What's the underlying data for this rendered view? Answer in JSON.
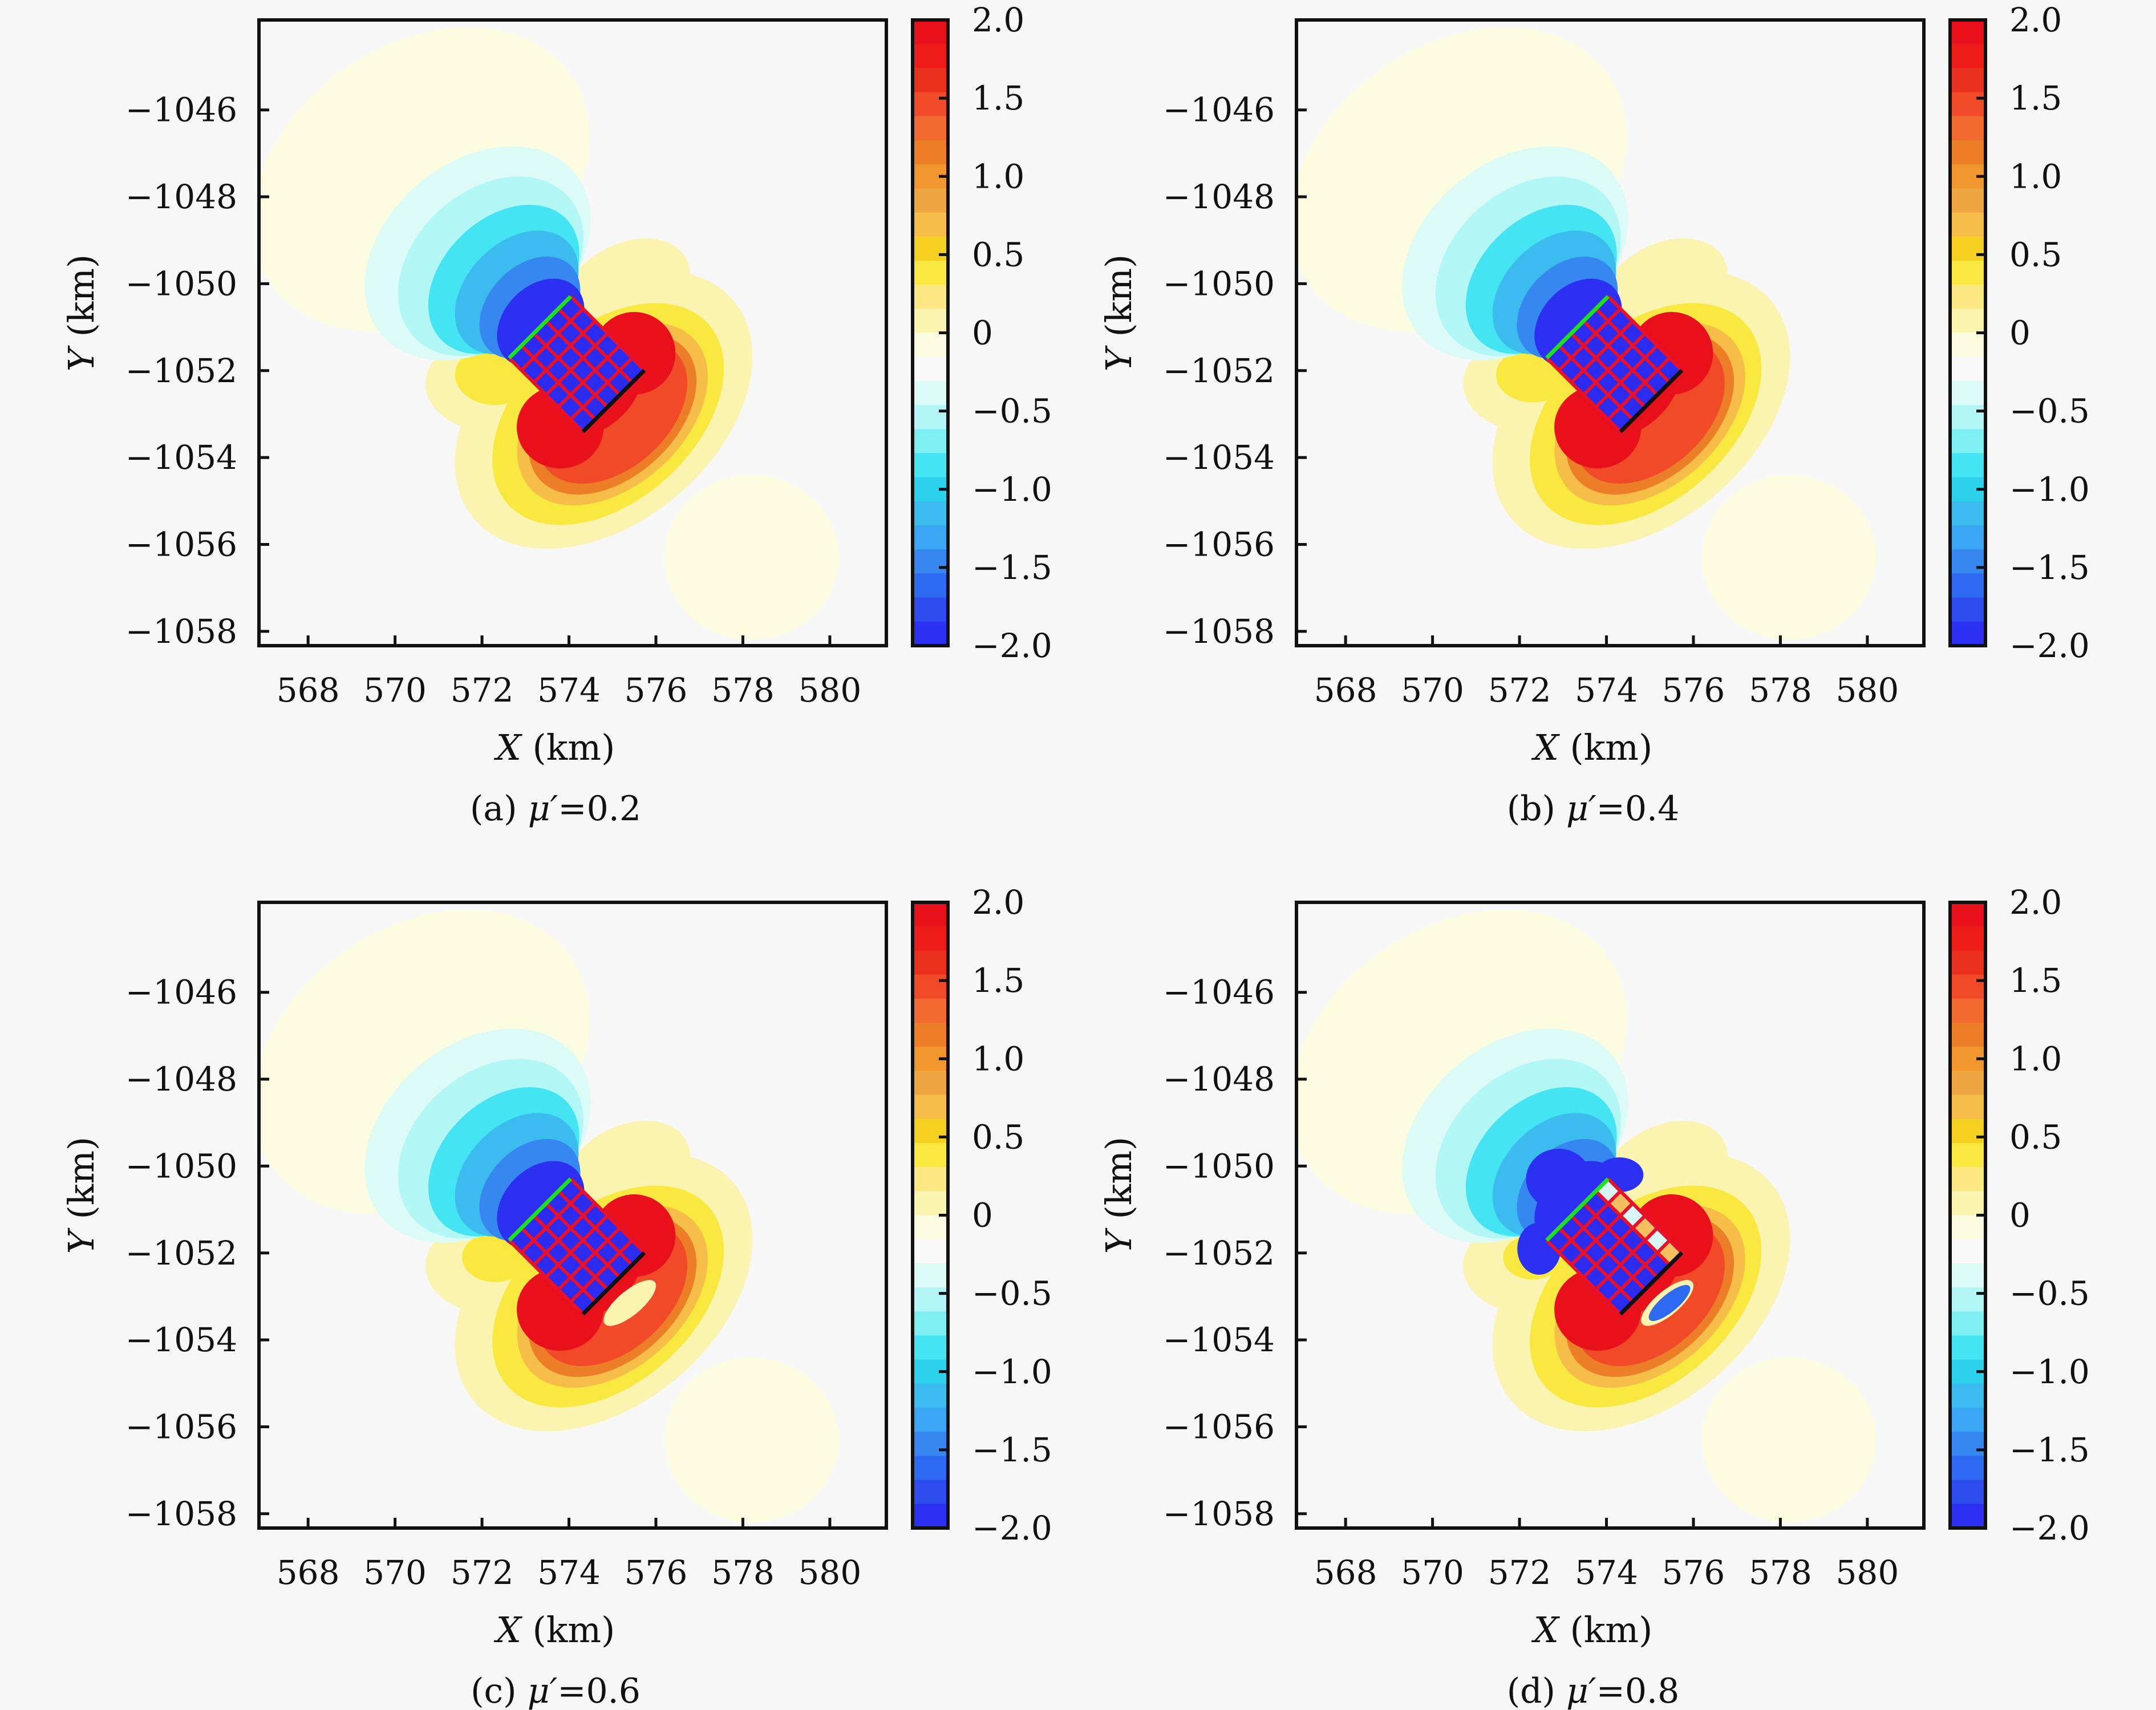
{
  "figure": {
    "background": "#f7f7f7"
  },
  "chart_data": {
    "type": "heatmap",
    "shared": {
      "xlabel_var": "X",
      "xlabel_unit": " (km)",
      "ylabel_var": "Y",
      "ylabel_unit": " (km)",
      "xlim": [
        566.87,
        581.3
      ],
      "ylim": [
        -1058.33,
        -1043.93
      ],
      "xticks": [
        568,
        570,
        572,
        574,
        576,
        578,
        580
      ],
      "xtick_labels": [
        "568",
        "570",
        "572",
        "574",
        "576",
        "578",
        "580"
      ],
      "yticks": [
        -1046,
        -1048,
        -1050,
        -1052,
        -1054,
        -1056,
        -1058
      ],
      "ytick_labels": [
        "−1046",
        "−1048",
        "−1050",
        "−1052",
        "−1054",
        "−1056",
        "−1058"
      ],
      "colorbar": {
        "range": [
          -2.0,
          2.0
        ],
        "ticks": [
          2.0,
          1.5,
          1.0,
          0.5,
          0,
          -0.5,
          -1.0,
          -1.5,
          -2.0
        ],
        "tick_labels": [
          "2.0",
          "1.5",
          "1.0",
          "0.5",
          "0",
          "−0.5",
          "−1.0",
          "−1.5",
          "−2.0"
        ],
        "colors_top_to_bottom": [
          "#e8101a",
          "#ee1c18",
          "#e8301c",
          "#f04a28",
          "#f26a30",
          "#ec7e28",
          "#f0962c",
          "#efa640",
          "#f6be48",
          "#f4d020",
          "#f8e840",
          "#fbe882",
          "#fbf4b0",
          "#fbfbe0",
          "#f8f8f8",
          "#dcfbf6",
          "#b2f7f6",
          "#7ef0f2",
          "#44e4f2",
          "#2cd2ec",
          "#3cbcee",
          "#3aa6f4",
          "#3688f0",
          "#2e6af0",
          "#2c4cee",
          "#2c30f0"
        ]
      },
      "fault": {
        "center": [
          574.18,
          -1051.85
        ],
        "strike_deg": 45,
        "length_km": 2.4,
        "width_km": 2.0,
        "grid_rows": 5,
        "grid_cols": 6,
        "grid_color": "#e8102a",
        "fill_color": "#2c2cf0",
        "top_edge_color": "#1ee01e",
        "bottom_edge_color": "#111111"
      }
    },
    "panels": [
      {
        "id": "a",
        "caption_prefix": "(a) ",
        "caption_var": "μ′",
        "caption_value": "=0.2",
        "mu_prime": 0.2,
        "fault_top_row_positive": false
      },
      {
        "id": "b",
        "caption_prefix": "(b) ",
        "caption_var": "μ′",
        "caption_value": "=0.4",
        "mu_prime": 0.4,
        "fault_top_row_positive": false
      },
      {
        "id": "c",
        "caption_prefix": "(c) ",
        "caption_var": "μ′",
        "caption_value": "=0.6",
        "mu_prime": 0.6,
        "fault_top_row_positive": false
      },
      {
        "id": "d",
        "caption_prefix": "(d) ",
        "caption_var": "μ′",
        "caption_value": "=0.8",
        "mu_prime": 0.8,
        "fault_top_row_positive": true
      }
    ]
  }
}
